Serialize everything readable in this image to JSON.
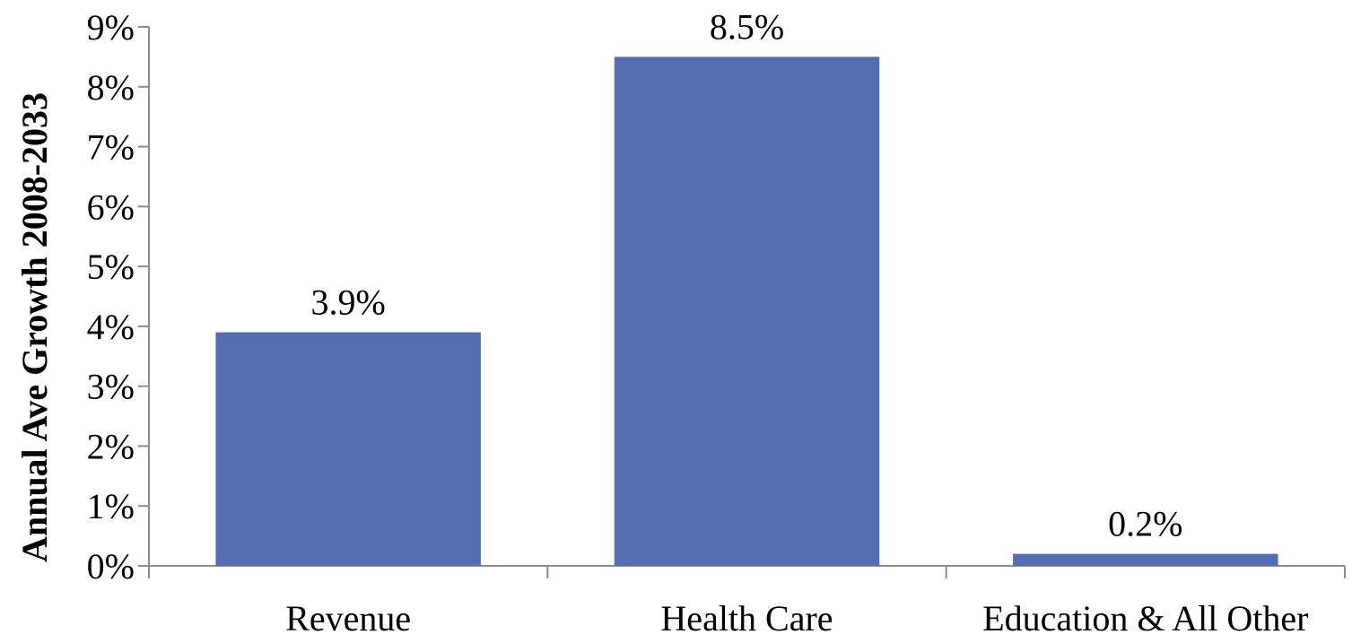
{
  "chart_data": {
    "type": "bar",
    "title": "",
    "xlabel": "",
    "ylabel": "Annual Ave Growth 2008-2033",
    "categories": [
      "Revenue",
      "Health Care",
      "Education & All Other"
    ],
    "values": [
      3.9,
      8.5,
      0.2
    ],
    "data_labels": [
      "3.9%",
      "8.5%",
      "0.2%"
    ],
    "ylim": [
      0,
      9
    ],
    "y_ticks": [
      0,
      1,
      2,
      3,
      4,
      5,
      6,
      7,
      8,
      9
    ],
    "y_tick_labels": [
      "0%",
      "1%",
      "2%",
      "3%",
      "4%",
      "5%",
      "6%",
      "7%",
      "8%",
      "9%"
    ],
    "grid": false,
    "legend": "none",
    "bar_color": "#536DB0"
  }
}
